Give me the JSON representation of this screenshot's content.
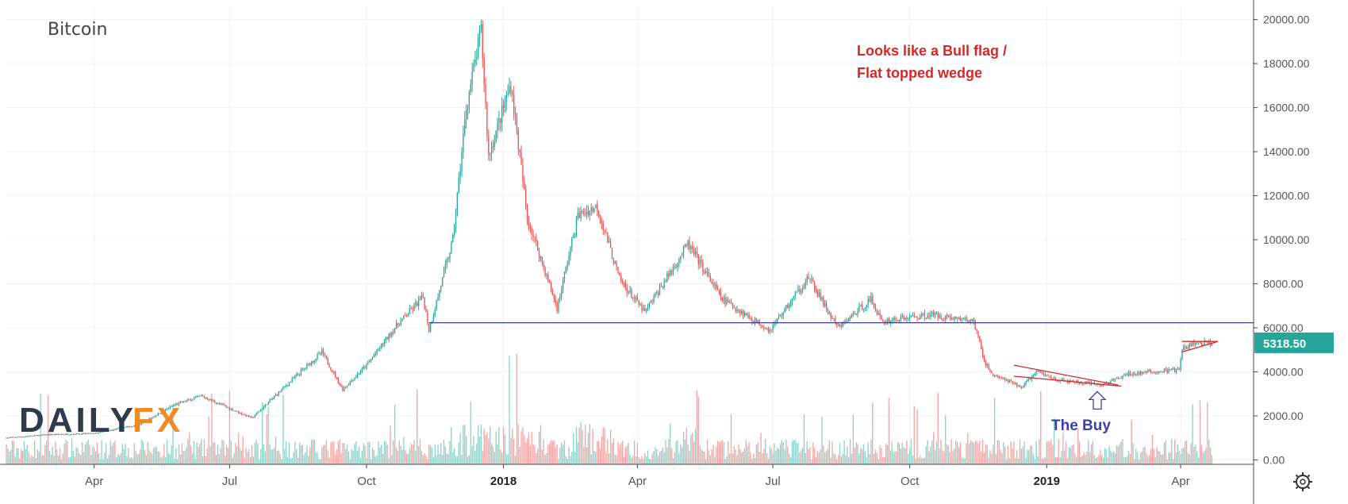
{
  "chart_data": {
    "type": "candlestick",
    "title": "Bitcoin",
    "y_axis": {
      "range": [
        -200,
        20600
      ],
      "position": "right",
      "ticks": [
        "20000.00",
        "18000.00",
        "16000.00",
        "14000.00",
        "12000.00",
        "10000.00",
        "8000.00",
        "6000.00",
        "4000.00",
        "2000.00",
        "0.00"
      ],
      "tick_values": [
        20000,
        18000,
        16000,
        14000,
        12000,
        10000,
        8000,
        6000,
        4000,
        2000,
        0
      ]
    },
    "x_axis": {
      "range": [
        "2017-02-01",
        "2019-05-20"
      ],
      "ticks": [
        {
          "label": "Apr",
          "date": "2017-04-01",
          "bold": false
        },
        {
          "label": "Jul",
          "date": "2017-07-01",
          "bold": false
        },
        {
          "label": "Oct",
          "date": "2017-10-01",
          "bold": false
        },
        {
          "label": "2018",
          "date": "2018-01-01",
          "bold": true
        },
        {
          "label": "Apr",
          "date": "2018-04-01",
          "bold": false
        },
        {
          "label": "Jul",
          "date": "2018-07-01",
          "bold": false
        },
        {
          "label": "Oct",
          "date": "2018-10-01",
          "bold": false
        },
        {
          "label": "2019",
          "date": "2019-01-01",
          "bold": true
        },
        {
          "label": "Apr",
          "date": "2019-04-01",
          "bold": false
        }
      ]
    },
    "grid": true,
    "price_path": [
      [
        "2017-02-01",
        1000
      ],
      [
        "2017-03-01",
        1150
      ],
      [
        "2017-04-01",
        1200
      ],
      [
        "2017-05-01",
        1600
      ],
      [
        "2017-05-25",
        2500
      ],
      [
        "2017-06-12",
        2900
      ],
      [
        "2017-07-16",
        1900
      ],
      [
        "2017-08-05",
        3200
      ],
      [
        "2017-09-01",
        4900
      ],
      [
        "2017-09-15",
        3200
      ],
      [
        "2017-10-01",
        4300
      ],
      [
        "2017-10-20",
        6000
      ],
      [
        "2017-11-08",
        7400
      ],
      [
        "2017-11-12",
        5900
      ],
      [
        "2017-11-28",
        10000
      ],
      [
        "2017-12-07",
        16000
      ],
      [
        "2017-12-17",
        19500
      ],
      [
        "2017-12-22",
        13800
      ],
      [
        "2018-01-06",
        17100
      ],
      [
        "2018-01-17",
        11000
      ],
      [
        "2018-02-06",
        6900
      ],
      [
        "2018-02-20",
        11100
      ],
      [
        "2018-03-05",
        11500
      ],
      [
        "2018-03-20",
        8200
      ],
      [
        "2018-04-06",
        6700
      ],
      [
        "2018-05-05",
        9800
      ],
      [
        "2018-05-28",
        7300
      ],
      [
        "2018-06-15",
        6500
      ],
      [
        "2018-06-29",
        5900
      ],
      [
        "2018-07-25",
        8300
      ],
      [
        "2018-08-10",
        6400
      ],
      [
        "2018-08-14",
        6000
      ],
      [
        "2018-09-05",
        7300
      ],
      [
        "2018-09-12",
        6300
      ],
      [
        "2018-10-15",
        6600
      ],
      [
        "2018-11-13",
        6300
      ],
      [
        "2018-11-20",
        4500
      ],
      [
        "2018-11-25",
        3900
      ],
      [
        "2018-12-15",
        3300
      ],
      [
        "2018-12-25",
        4000
      ],
      [
        "2019-01-10",
        3600
      ],
      [
        "2019-02-07",
        3400
      ],
      [
        "2019-02-25",
        3900
      ],
      [
        "2019-03-31",
        4100
      ],
      [
        "2019-04-02",
        5000
      ],
      [
        "2019-04-10",
        5300
      ],
      [
        "2019-04-22",
        5318.5
      ]
    ],
    "support_line": {
      "value": 6230,
      "from": "2017-11-12",
      "to": "2019-05-20",
      "color": "#3b3f8c"
    },
    "trendlines": [
      {
        "from": [
          "2018-12-10",
          4300
        ],
        "to": [
          "2019-02-18",
          3400
        ],
        "color": "#d62828"
      },
      {
        "from": [
          "2018-12-10",
          3800
        ],
        "to": [
          "2019-02-20",
          3350
        ],
        "color": "#d62828"
      },
      {
        "from": [
          "2019-04-02",
          5380
        ],
        "to": [
          "2019-04-26",
          5380
        ],
        "color": "#d62828"
      },
      {
        "from": [
          "2019-04-02",
          4900
        ],
        "to": [
          "2019-04-26",
          5380
        ],
        "color": "#d62828"
      }
    ],
    "last_price": {
      "value": 5318.5,
      "label": "5318.50"
    },
    "annotations": [
      {
        "text": "Looks like a Bull flag /",
        "color": "#d62828"
      },
      {
        "text": "Flat topped wedge",
        "color": "#d62828"
      },
      {
        "text": "The Buy",
        "color": "#3a3fb4"
      }
    ],
    "buy_arrow": {
      "date": "2019-02-04",
      "value": 3320
    }
  },
  "colors": {
    "up": "#26a69a",
    "down": "#ef5350",
    "volume_up": "#8fd1c9",
    "volume_down": "#f3a5a5",
    "grid": "#eef0f3",
    "axis_text": "#555555",
    "badge": "#26a69a"
  },
  "logo": {
    "part1": "DAILY",
    "part2": "FX"
  },
  "icons": {
    "settings": "gear-icon"
  }
}
